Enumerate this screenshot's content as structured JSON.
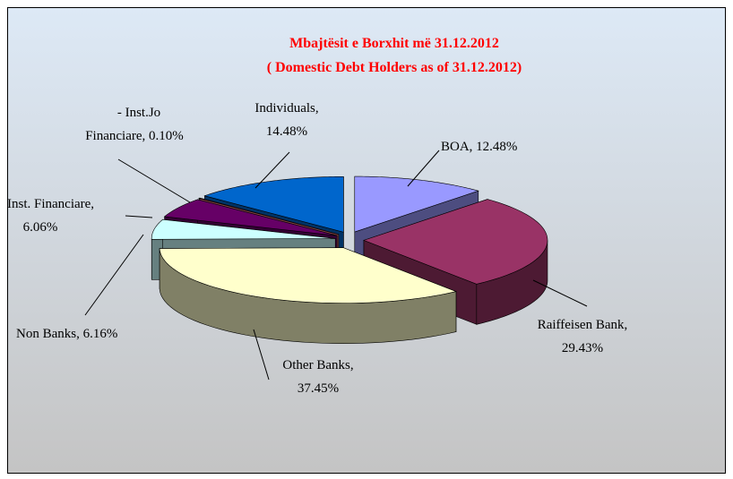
{
  "chart_data": {
    "type": "pie3d",
    "title": "Mbajtësit e Borxhit më 31.12.2012",
    "subtitle": "( Domestic Debt Holders as of 31.12.2012)",
    "values": [
      12.48,
      29.43,
      37.45,
      6.16,
      6.06,
      0.1,
      14.48
    ],
    "value_labels": [
      [
        "BOA, 12.48%"
      ],
      [
        "Raiffeisen Bank,",
        "29.43%"
      ],
      [
        "Other Banks,",
        "37.45%"
      ],
      [
        "Non Banks, 6.16%"
      ],
      [
        "Inst. Financiare,",
        "6.06%"
      ],
      [
        "- Inst.Jo",
        "Financiare, 0.10%"
      ],
      [
        "Individuals,",
        "14.48%"
      ]
    ],
    "colors": [
      "#9999ff",
      "#993366",
      "#ffffcc",
      "#ccffff",
      "#660066",
      "#ff8080",
      "#0066cc"
    ]
  }
}
